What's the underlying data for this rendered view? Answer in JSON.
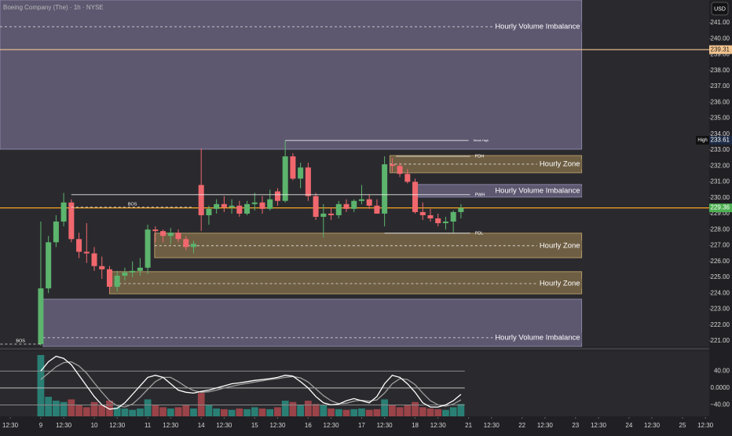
{
  "chart_data": {
    "type": "candlestick",
    "title": "Boeing Company (The) · 1h · NYSE",
    "currency": "USD",
    "up_color": "#5cb46d",
    "down_color": "#f0686e",
    "x": [
      0,
      1,
      2,
      3,
      4,
      5,
      6,
      7,
      8,
      9,
      10,
      11,
      12,
      13,
      14,
      15,
      16,
      17,
      18,
      19,
      20,
      21,
      22,
      23,
      24,
      25,
      26,
      27,
      28,
      29,
      30,
      31,
      32,
      33,
      34,
      35,
      36,
      37,
      38,
      39,
      40,
      41,
      42,
      43,
      44,
      45,
      46,
      47,
      48,
      49,
      50,
      51,
      52,
      53,
      54,
      55
    ],
    "open": [
      220.8,
      224.3,
      227.2,
      228.5,
      229.7,
      227.4,
      226.6,
      226.5,
      225.7,
      225.5,
      224.4,
      225.1,
      225.3,
      225.4,
      225.6,
      228.0,
      227.9,
      227.6,
      227.8,
      227.4,
      226.9,
      230.8,
      228.9,
      229.3,
      229.6,
      229.4,
      229.5,
      229.0,
      229.6,
      229.7,
      229.3,
      230.4,
      229.8,
      232.6,
      231.2,
      231.9,
      230.1,
      228.8,
      229.0,
      228.9,
      229.6,
      229.3,
      229.8,
      229.9,
      229.5,
      229.0,
      232.1,
      232.0,
      231.5,
      231.0,
      229.1,
      228.9,
      228.7,
      228.4,
      228.5,
      229.1
    ],
    "high": [
      228.5,
      227.6,
      228.9,
      230.3,
      229.9,
      227.8,
      228.4,
      226.9,
      226.3,
      225.7,
      225.4,
      225.6,
      226.0,
      226.2,
      228.3,
      228.2,
      228.0,
      228.1,
      228.0,
      227.6,
      227.3,
      233.1,
      229.5,
      229.9,
      230.1,
      229.9,
      229.8,
      229.8,
      230.3,
      230.1,
      230.5,
      230.6,
      233.6,
      232.8,
      232.2,
      232.2,
      230.3,
      229.6,
      229.4,
      229.8,
      229.9,
      229.9,
      230.8,
      230.2,
      229.9,
      232.6,
      232.5,
      232.2,
      231.8,
      231.2,
      229.7,
      229.3,
      229.0,
      228.8,
      229.2,
      229.6
    ],
    "low": [
      220.7,
      224.0,
      226.9,
      228.2,
      227.2,
      226.2,
      225.9,
      225.4,
      224.9,
      224.1,
      224.1,
      224.8,
      225.0,
      225.1,
      225.2,
      227.2,
      227.2,
      227.1,
      227.2,
      226.7,
      226.5,
      227.9,
      228.3,
      229.0,
      229.1,
      229.0,
      228.8,
      228.9,
      229.2,
      229.0,
      229.2,
      229.5,
      229.7,
      231.1,
      230.6,
      229.8,
      228.6,
      227.5,
      228.6,
      228.7,
      229.1,
      229.1,
      229.6,
      229.3,
      229.0,
      228.2,
      231.6,
      231.3,
      230.9,
      229.0,
      228.6,
      228.5,
      228.2,
      228.0,
      227.8,
      228.7
    ],
    "close": [
      224.3,
      227.2,
      228.5,
      229.7,
      227.4,
      226.6,
      226.5,
      225.7,
      225.5,
      224.4,
      225.1,
      225.3,
      225.4,
      225.6,
      228.0,
      227.9,
      227.6,
      227.8,
      227.4,
      226.9,
      227.1,
      228.9,
      229.3,
      229.6,
      229.4,
      229.5,
      229.0,
      229.6,
      229.7,
      229.3,
      229.9,
      229.8,
      232.6,
      231.2,
      231.9,
      230.1,
      228.8,
      229.0,
      228.9,
      229.6,
      229.3,
      229.8,
      229.9,
      229.5,
      229.0,
      232.1,
      232.0,
      231.5,
      231.0,
      229.1,
      228.9,
      228.7,
      228.4,
      228.5,
      229.1,
      229.36
    ],
    "xlim": [
      -5.34,
      87.5
    ],
    "xticks": [
      {
        "value": -4,
        "label": "12:30"
      },
      {
        "value": 0,
        "label": "9"
      },
      {
        "value": 3,
        "label": "12:30"
      },
      {
        "value": 7,
        "label": "10"
      },
      {
        "value": 10,
        "label": "12:30"
      },
      {
        "value": 14,
        "label": "11"
      },
      {
        "value": 17,
        "label": "12:30"
      },
      {
        "value": 21,
        "label": "14"
      },
      {
        "value": 24,
        "label": "12:30"
      },
      {
        "value": 28,
        "label": "15"
      },
      {
        "value": 31,
        "label": "12:30"
      },
      {
        "value": 35,
        "label": "16"
      },
      {
        "value": 38,
        "label": "12:30"
      },
      {
        "value": 42,
        "label": "17"
      },
      {
        "value": 45,
        "label": "12:30"
      },
      {
        "value": 49,
        "label": "18"
      },
      {
        "value": 52,
        "label": "12:30"
      },
      {
        "value": 56,
        "label": "21"
      },
      {
        "value": 59,
        "label": "12:30"
      },
      {
        "value": 63,
        "label": "22"
      },
      {
        "value": 66,
        "label": "12:30"
      },
      {
        "value": 70,
        "label": "23"
      },
      {
        "value": 73,
        "label": "12:30"
      },
      {
        "value": 77,
        "label": "24"
      },
      {
        "value": 80,
        "label": "12:30"
      },
      {
        "value": 84,
        "label": "25"
      },
      {
        "value": 87,
        "label": "12:30"
      }
    ],
    "ylim": [
      220.65,
      242.43
    ],
    "yticks": [
      {
        "value": 221,
        "label": "221.00"
      },
      {
        "value": 222,
        "label": "222.00"
      },
      {
        "value": 223,
        "label": "223.00"
      },
      {
        "value": 224,
        "label": "224.00"
      },
      {
        "value": 225,
        "label": "225.00"
      },
      {
        "value": 226,
        "label": "226.00"
      },
      {
        "value": 227,
        "label": "227.00"
      },
      {
        "value": 228,
        "label": "228.00"
      },
      {
        "value": 229,
        "label": "229.00"
      },
      {
        "value": 230,
        "label": "230.00"
      },
      {
        "value": 231,
        "label": "231.00"
      },
      {
        "value": 232,
        "label": "232.00"
      },
      {
        "value": 233,
        "label": "233.00"
      },
      {
        "value": 234,
        "label": "234.00"
      },
      {
        "value": 235,
        "label": "235.00"
      },
      {
        "value": 236,
        "label": "236.00"
      },
      {
        "value": 237,
        "label": "237.00"
      },
      {
        "value": 238,
        "label": "238.00"
      },
      {
        "value": 239,
        "label": "239.00"
      },
      {
        "value": 240,
        "label": "240.00"
      },
      {
        "value": 241,
        "label": "241.00"
      }
    ],
    "grid": false,
    "price_lines": [
      {
        "value": 239.31,
        "label": "239.31",
        "color": "#f4c48f",
        "tag_color": "#f4c48f",
        "text_color": "#222222",
        "line": true
      },
      {
        "value": 233.61,
        "label": "233.61",
        "tag": "High",
        "color": "#1c2a44",
        "tag_color": "#1c2a44",
        "text_color": "#ffffff",
        "line": false
      },
      {
        "value": 229.36,
        "label": "229.36",
        "color": "#f5a623",
        "tag_color": "#4caf50",
        "text_color": "#ffffff",
        "line": true
      }
    ],
    "zone_styles": {
      "imbalance": {
        "fill": "#5d5870",
        "stroke": "#8a83a6"
      },
      "zone": {
        "fill": "#6e5e43",
        "stroke": "#b09766"
      }
    },
    "zones": [
      {
        "label": "Hourly Volume Imbalance",
        "kind": "imbalance",
        "top": 242.43,
        "bottom": 233.05,
        "dash": 240.75,
        "start": -5.34,
        "end": 70.8
      },
      {
        "label": "Hourly Zone",
        "kind": "zone",
        "top": 232.65,
        "bottom": 231.57,
        "dash": 232.11,
        "start": 45.7,
        "end": 70.8
      },
      {
        "label": "Hourly Volume Imbalance",
        "kind": "imbalance",
        "top": 230.83,
        "bottom": 230.04,
        "start": 49.1,
        "end": 70.8
      },
      {
        "label": "Hourly Zone",
        "kind": "zone",
        "top": 227.77,
        "bottom": 226.23,
        "dash": 226.98,
        "start": 14.9,
        "end": 70.8
      },
      {
        "label": "Hourly Zone",
        "kind": "zone",
        "top": 225.35,
        "bottom": 223.96,
        "dash": 224.6,
        "start": 9.0,
        "end": 70.8
      },
      {
        "label": "Hourly Volume Imbalance",
        "kind": "imbalance",
        "top": 223.62,
        "bottom": 220.65,
        "dash": 221.2,
        "start": 0.3,
        "end": 70.8
      }
    ],
    "annotations": [
      {
        "text": "Weak High",
        "value": 233.6,
        "start": 32,
        "end": 56,
        "dashed": false
      },
      {
        "text": "PDH",
        "value": 232.6,
        "start": 46.5,
        "end": 56.2,
        "dashed": false
      },
      {
        "text": "PWH",
        "value": 230.19,
        "start": 4,
        "end": 56.2,
        "dashed": false
      },
      {
        "text": "PDL",
        "value": 227.77,
        "start": 45,
        "end": 56.2,
        "dashed": false
      },
      {
        "text": "BOS",
        "value": 229.4,
        "start": 4,
        "end": 20,
        "dashed": true
      },
      {
        "text": "BOS",
        "value": 220.8,
        "start": -5.3,
        "end": 0,
        "dashed": true
      }
    ],
    "oscillator": {
      "ylim": [
        -67,
        87
      ],
      "yticks": [
        {
          "value": 40,
          "label": "40.00"
        },
        {
          "value": 0,
          "label": "0.0000"
        },
        {
          "value": -40,
          "label": "−40.00"
        }
      ],
      "series": [
        {
          "color": "#9e9e9e",
          "values": [
            20,
            35,
            50,
            60,
            62,
            52,
            35,
            12,
            -10,
            -30,
            -42,
            -45,
            -38,
            -22,
            -3,
            15,
            25,
            25,
            15,
            3,
            -6,
            -10,
            -9,
            -5,
            0,
            4,
            8,
            11,
            14,
            17,
            20,
            22,
            25,
            27,
            24,
            14,
            -2,
            -18,
            -30,
            -37,
            -36,
            -31,
            -29,
            -31,
            -28,
            -12,
            10,
            22,
            20,
            8,
            -12,
            -30,
            -40,
            -43,
            -38,
            -28
          ]
        },
        {
          "color": "#ffffff",
          "values": [
            40,
            62,
            75,
            70,
            55,
            30,
            5,
            -20,
            -40,
            -50,
            -48,
            -35,
            -15,
            5,
            25,
            30,
            25,
            10,
            -5,
            -10,
            -12,
            -8,
            -5,
            0,
            5,
            10,
            12,
            15,
            18,
            20,
            22,
            25,
            30,
            28,
            15,
            0,
            -20,
            -35,
            -40,
            -38,
            -30,
            -25,
            -30,
            -35,
            -20,
            10,
            30,
            25,
            10,
            -10,
            -35,
            -45,
            -45,
            -40,
            -30,
            -15
          ]
        }
      ]
    },
    "volume": {
      "ylim": [
        0,
        100
      ],
      "up_color": "#2a7f75",
      "down_color": "#9a4348",
      "values": [
        94,
        30,
        24,
        22,
        26,
        18,
        14,
        22,
        17,
        24,
        14,
        12,
        10,
        12,
        26,
        18,
        14,
        12,
        14,
        17,
        12,
        36,
        17,
        12,
        11,
        10,
        12,
        11,
        14,
        12,
        11,
        14,
        24,
        22,
        17,
        24,
        19,
        17,
        12,
        11,
        10,
        11,
        12,
        10,
        11,
        26,
        17,
        14,
        18,
        22,
        14,
        12,
        11,
        10,
        14,
        19
      ]
    }
  }
}
